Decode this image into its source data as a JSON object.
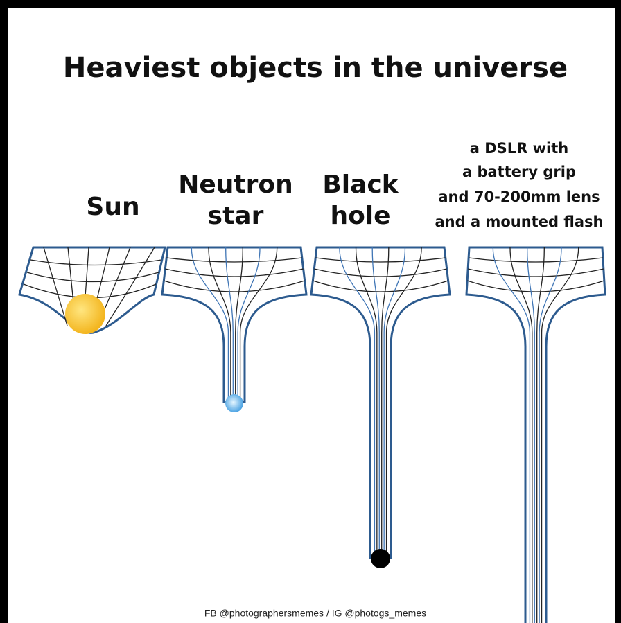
{
  "title": "Heaviest objects in the universe",
  "objects": [
    {
      "label_lines": [
        "Sun"
      ]
    },
    {
      "label_lines": [
        "Neutron",
        "star"
      ]
    },
    {
      "label_lines": [
        "Black",
        "hole"
      ]
    },
    {
      "label_lines": [
        "a DSLR with",
        "a battery grip",
        "and 70-200mm lens",
        "and a mounted flash"
      ]
    }
  ],
  "credit": "FB @photographersmemes / IG @photogs_memes"
}
